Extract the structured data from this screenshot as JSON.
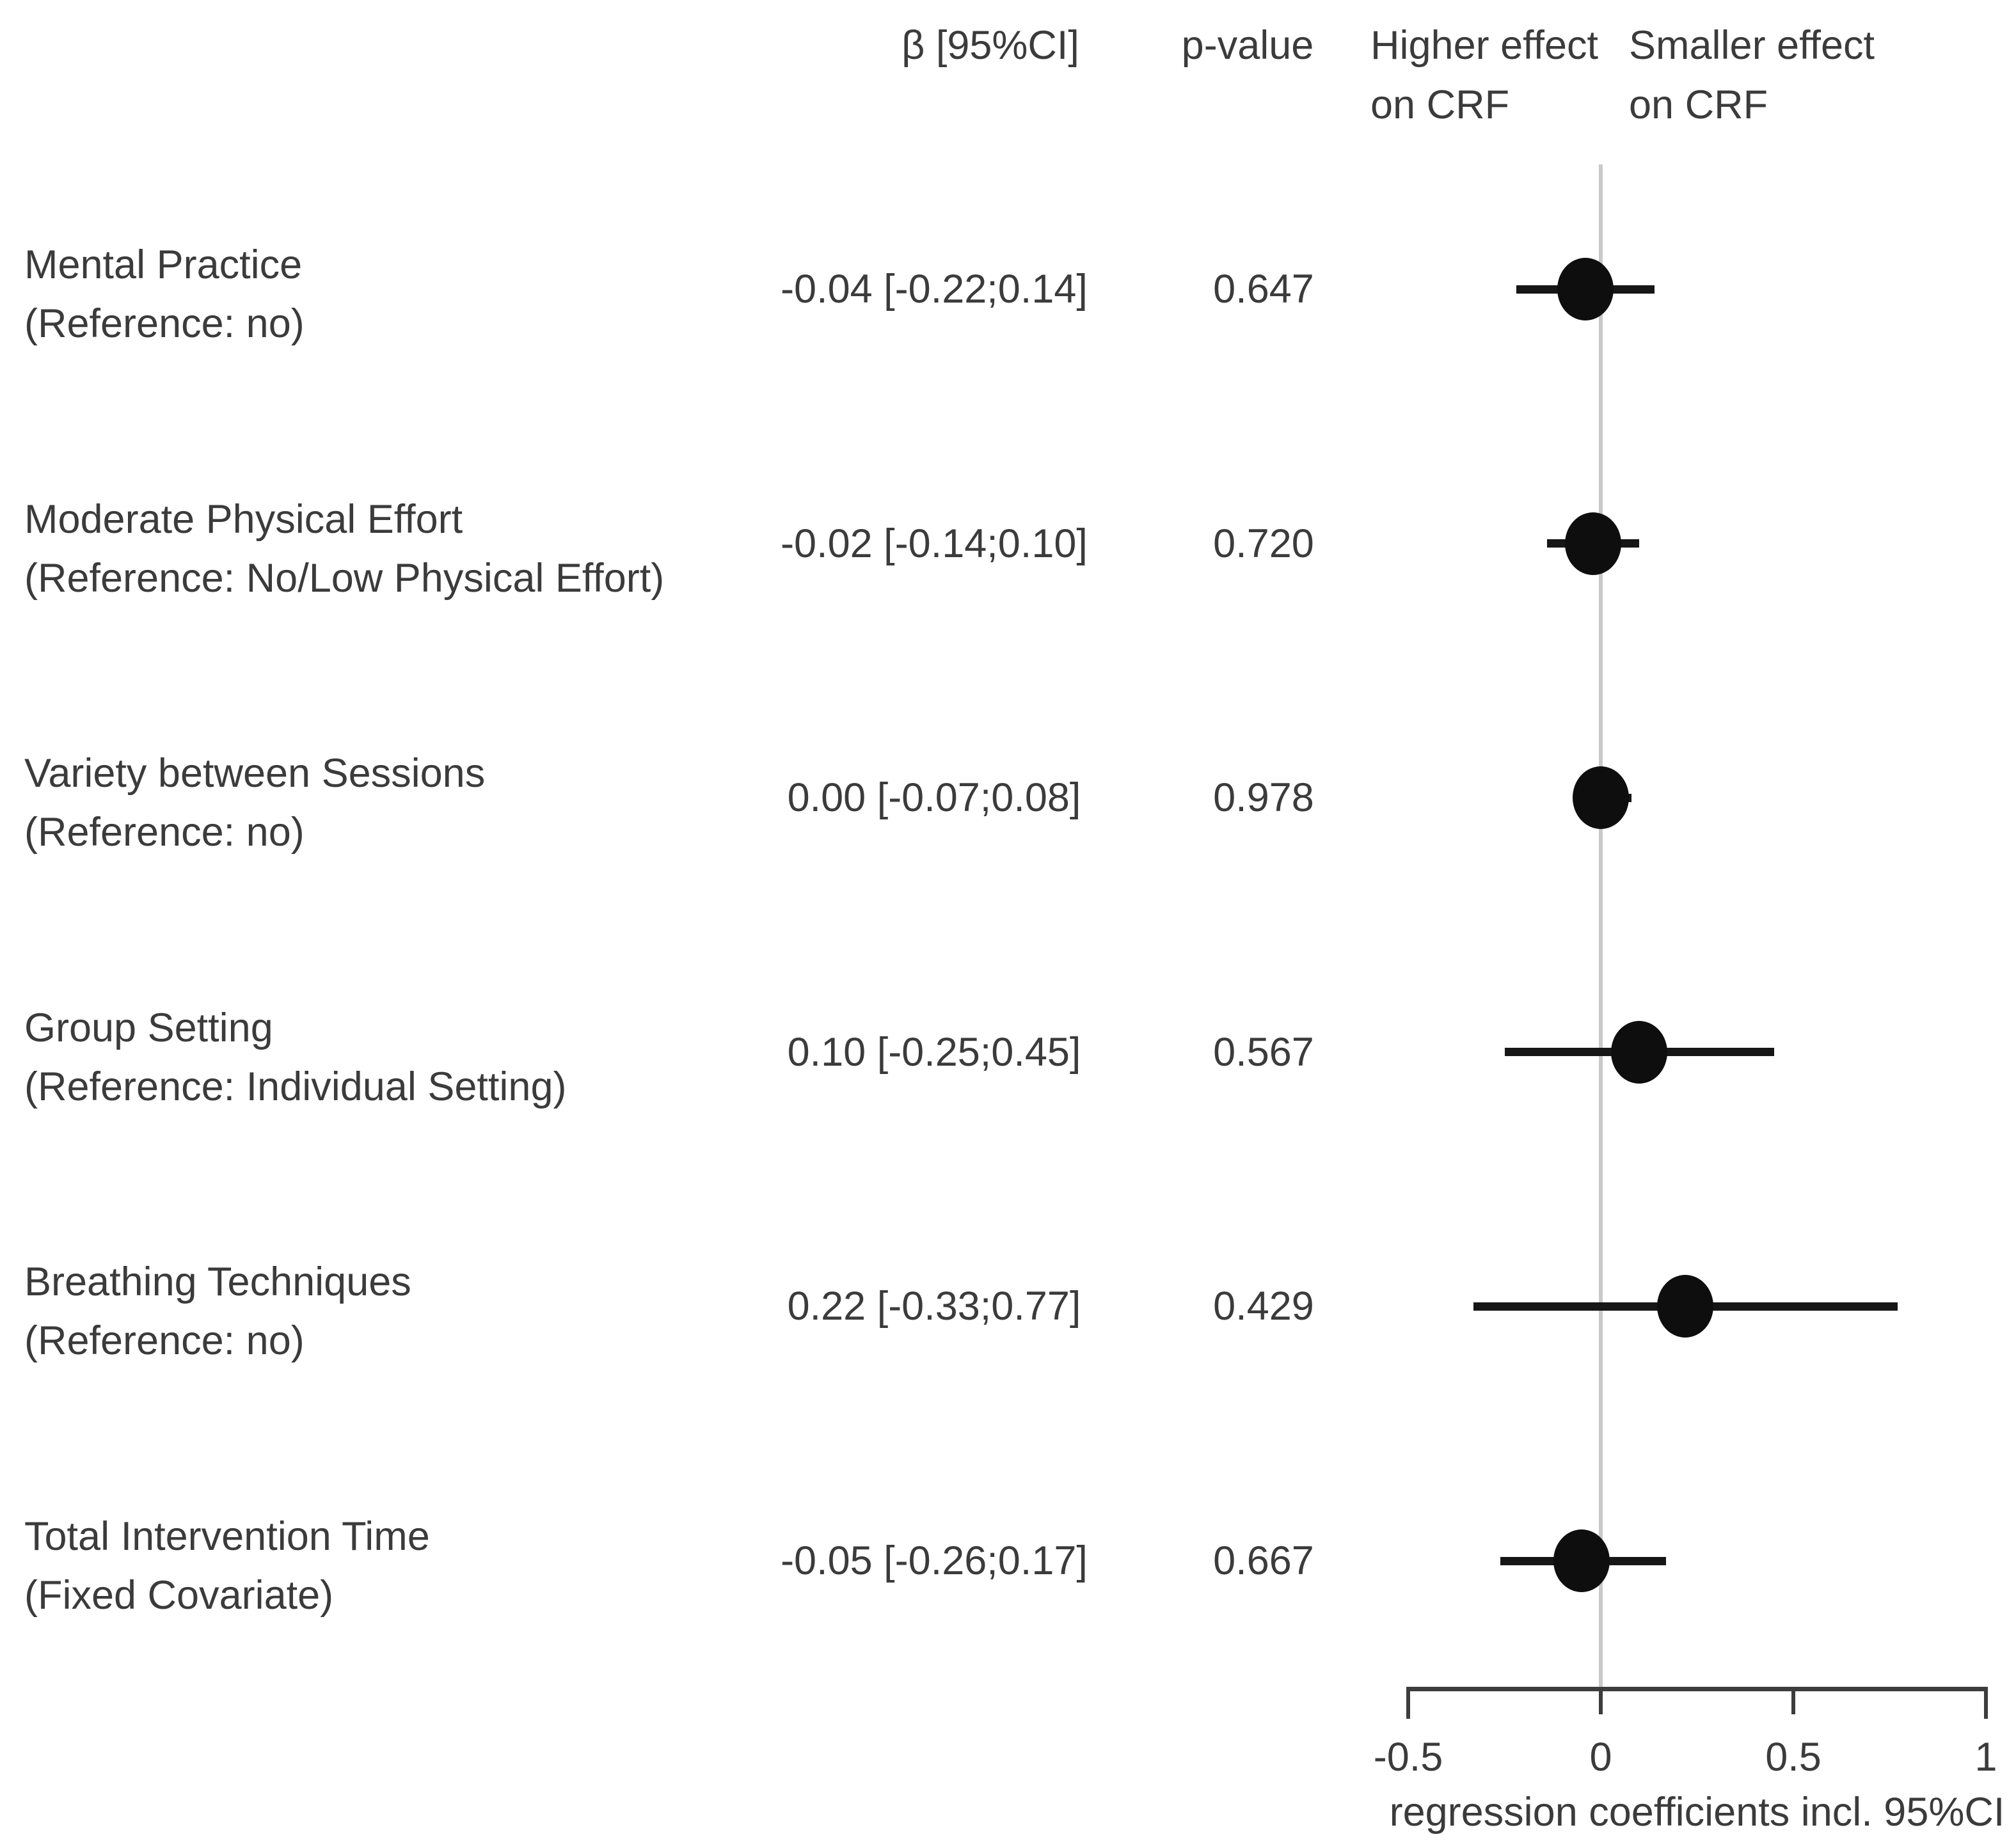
{
  "chart_data": {
    "type": "scatter",
    "subtype": "forest-plot",
    "headers": {
      "beta_ci": "β [95%CI]",
      "p_value": "p-value",
      "left_region": "Higher effect\non CRF",
      "right_region": "Smaller effect\non CRF"
    },
    "rows": [
      {
        "label": "Mental Practice",
        "sublabel": "(Reference: no)",
        "estimate_text": "-0.04 [-0.22;0.14]",
        "p_text": "0.647",
        "beta": -0.04,
        "ci_low": -0.22,
        "ci_high": 0.14
      },
      {
        "label": "Moderate Physical Effort",
        "sublabel": "(Reference: No/Low Physical Effort)",
        "estimate_text": "-0.02 [-0.14;0.10]",
        "p_text": "0.720",
        "beta": -0.02,
        "ci_low": -0.14,
        "ci_high": 0.1
      },
      {
        "label": "Variety between Sessions",
        "sublabel": "(Reference: no)",
        "estimate_text": "0.00 [-0.07;0.08]",
        "p_text": "0.978",
        "beta": 0.0,
        "ci_low": -0.07,
        "ci_high": 0.08
      },
      {
        "label": "Group Setting",
        "sublabel": "(Reference: Individual Setting)",
        "estimate_text": "0.10 [-0.25;0.45]",
        "p_text": "0.567",
        "beta": 0.1,
        "ci_low": -0.25,
        "ci_high": 0.45
      },
      {
        "label": "Breathing Techniques",
        "sublabel": "(Reference: no)",
        "estimate_text": "0.22 [-0.33;0.77]",
        "p_text": "0.429",
        "beta": 0.22,
        "ci_low": -0.33,
        "ci_high": 0.77
      },
      {
        "label": "Total Intervention Time",
        "sublabel": "(Fixed Covariate)",
        "estimate_text": "-0.05 [-0.26;0.17]",
        "p_text": "0.667",
        "beta": -0.05,
        "ci_low": -0.26,
        "ci_high": 0.17
      }
    ],
    "x_axis": {
      "range": [
        -0.5,
        1
      ],
      "ticks": [
        -0.5,
        0,
        0.5,
        1
      ],
      "tick_labels": [
        "-0.5",
        "0",
        "0.5",
        "1"
      ],
      "label": "regression coefficients incl. 95%CI"
    },
    "zero_reference_line": 0,
    "colors": {
      "background": "#ffffff",
      "text": "#3b3b3b",
      "point": "#0e0e0e",
      "ci_line": "#161616",
      "zero_line": "#c9c9c9",
      "axis": "#3d3d3d"
    }
  }
}
